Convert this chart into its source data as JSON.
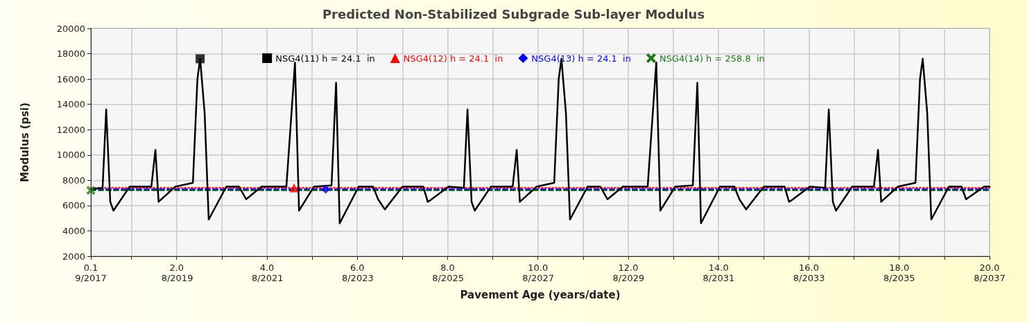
{
  "chart_data": {
    "type": "line",
    "title": "Predicted Non-Stabilized Subgrade Sub-layer Modulus",
    "xlabel": "Pavement Age (years/date)",
    "ylabel": "Modulus (psi)",
    "xlim": [
      0.1,
      20.0
    ],
    "ylim": [
      2000,
      20000
    ],
    "xticks": [
      0.1,
      {
        "value": 1,
        "label": null
      },
      {
        "value": 2,
        "label": "2.0"
      },
      {
        "value": 3,
        "label": null
      },
      {
        "value": 4,
        "label": "4.0"
      },
      {
        "value": 5,
        "label": null
      },
      {
        "value": 6,
        "label": "6.0"
      },
      {
        "value": 7,
        "label": null
      },
      {
        "value": 8,
        "label": "8.0"
      },
      {
        "value": 9,
        "label": null
      },
      {
        "value": 10,
        "label": "10.0"
      },
      {
        "value": 11,
        "label": null
      },
      {
        "value": 12,
        "label": "12.0"
      },
      {
        "value": 13,
        "label": null
      },
      {
        "value": 14,
        "label": "14.0"
      },
      {
        "value": 15,
        "label": null
      },
      {
        "value": 16,
        "label": "16.0"
      },
      {
        "value": 17,
        "label": null
      },
      {
        "value": 18,
        "label": "18.0"
      },
      {
        "value": 19,
        "label": null
      },
      {
        "value": 20,
        "label": "20.0"
      }
    ],
    "x2lim": [
      "2017-09",
      "2037-08"
    ],
    "x2ticks": [
      {
        "value": "2017-09",
        "label": "9/2017"
      },
      {
        "value": "2019-08",
        "label": "8/2019"
      },
      {
        "value": "2021-08",
        "label": "8/2021"
      },
      {
        "value": "2023-08",
        "label": "8/2023"
      },
      {
        "value": "2025-08",
        "label": "8/2025"
      },
      {
        "value": "2027-08",
        "label": "8/2027"
      },
      {
        "value": "2029-08",
        "label": "8/2029"
      },
      {
        "value": "2031-08",
        "label": "8/2031"
      },
      {
        "value": "2033-08",
        "label": "8/2033"
      },
      {
        "value": "2035-08",
        "label": "8/2035"
      },
      {
        "value": "2037-08",
        "label": "8/2037"
      }
    ],
    "yticks": [
      2000,
      4000,
      6000,
      8000,
      10000,
      12000,
      14000,
      16000,
      18000,
      20000
    ],
    "grid": true,
    "legend": "top",
    "series": [
      {
        "name": "NSG4(11) h = 24.1  in",
        "color": "#000000",
        "line_style": "solid",
        "x": [
          0.1,
          0.36,
          0.44,
          0.53,
          0.6,
          0.96,
          1.44,
          1.53,
          1.6,
          1.97,
          2.36,
          2.46,
          2.52,
          2.62,
          2.71,
          3.1,
          3.38,
          3.54,
          3.88,
          4.43,
          4.62,
          4.71,
          5.04,
          5.43,
          5.53,
          5.61,
          6.03,
          6.35,
          6.46,
          6.61,
          7.0,
          7.46,
          7.56,
          7.61,
          8.02,
          8.36,
          8.44,
          8.53,
          8.6,
          8.96,
          9.44,
          9.53,
          9.6,
          9.97,
          10.36,
          10.46,
          10.52,
          10.62,
          10.71,
          11.1,
          11.38,
          11.54,
          11.88,
          12.43,
          12.62,
          12.71,
          13.04,
          13.43,
          13.53,
          13.61,
          14.03,
          14.35,
          14.46,
          14.61,
          15.0,
          15.46,
          15.56,
          15.61,
          16.02,
          16.36,
          16.44,
          16.53,
          16.6,
          16.96,
          17.44,
          17.53,
          17.6,
          17.97,
          18.36,
          18.46,
          18.52,
          18.62,
          18.71,
          19.1,
          19.38,
          19.48,
          19.88,
          20.0
        ],
        "values": [
          7300,
          7400,
          13600,
          6300,
          5600,
          7500,
          7500,
          10400,
          6300,
          7500,
          7800,
          16000,
          17600,
          13300,
          4900,
          7500,
          7500,
          6500,
          7500,
          7500,
          17300,
          5600,
          7500,
          7600,
          15700,
          4600,
          7500,
          7500,
          6500,
          5700,
          7500,
          7500,
          6300,
          6400,
          7500,
          7400,
          13600,
          6300,
          5600,
          7500,
          7500,
          10400,
          6300,
          7500,
          7800,
          16000,
          17600,
          13300,
          4900,
          7500,
          7500,
          6500,
          7500,
          7500,
          17300,
          5600,
          7500,
          7600,
          15700,
          4600,
          7500,
          7500,
          6500,
          5700,
          7500,
          7500,
          6300,
          6400,
          7500,
          7400,
          13600,
          6300,
          5600,
          7500,
          7500,
          10400,
          6300,
          7500,
          7800,
          16000,
          17600,
          13300,
          4900,
          7500,
          7500,
          6500,
          7500,
          7500
        ]
      },
      {
        "name": "NSG4(12) h = 24.1  in",
        "color": "#ff0000",
        "line_style": "dotted",
        "x": [
          0.1,
          20.0
        ],
        "values": [
          7400,
          7400
        ]
      },
      {
        "name": "NSG4(13) h = 24.1  in",
        "color": "#0000ff",
        "line_style": "dashed",
        "x": [
          0.1,
          20.0
        ],
        "values": [
          7300,
          7300
        ]
      },
      {
        "name": "NSG4(14) h = 258.8  in",
        "color": "#1a7a1a",
        "line_style": "dashed",
        "x": [
          0.1,
          20.0
        ],
        "values": [
          7200,
          7200
        ]
      },
      {
        "type": "scatter",
        "color": "#000000",
        "marker": "square",
        "x": [
          2.52
        ],
        "values": [
          17600
        ]
      },
      {
        "type": "scatter",
        "color": "#ff0000",
        "marker": "triangle",
        "x": [
          4.6
        ],
        "values": [
          7400
        ]
      },
      {
        "type": "scatter",
        "color": "#0000ff",
        "marker": "diamond",
        "x": [
          5.3
        ],
        "values": [
          7300
        ]
      },
      {
        "type": "scatter",
        "color": "#1a7a1a",
        "marker": "cross",
        "x": [
          0.1
        ],
        "values": [
          7200
        ]
      }
    ]
  }
}
